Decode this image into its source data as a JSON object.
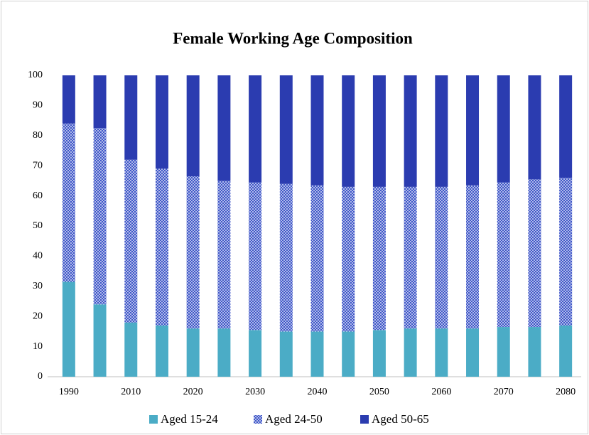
{
  "chart_data": {
    "type": "stacked_bar",
    "title": "Female Working Age Composition",
    "categories": [
      "1990",
      null,
      "2010",
      null,
      "2020",
      null,
      "2030",
      null,
      "2040",
      null,
      "2050",
      null,
      "2060",
      null,
      "2070",
      null,
      "2080"
    ],
    "series": [
      {
        "name": "Aged 15-24",
        "color": "#4bacc6",
        "values": [
          31.5,
          24,
          18,
          17,
          16,
          16,
          15.5,
          15,
          15,
          15,
          15.5,
          16,
          16,
          16,
          16.5,
          16.5,
          17
        ]
      },
      {
        "name": "Aged 24-50",
        "color": "#3d55c8",
        "fill": "crosshatch",
        "values": [
          52.5,
          58.5,
          54,
          52,
          50.5,
          49,
          49,
          49,
          48.5,
          48,
          47.5,
          47,
          47,
          47.5,
          48,
          49,
          49
        ]
      },
      {
        "name": "Aged 50-65",
        "color": "#2b3cb0",
        "values": [
          16,
          17.5,
          28,
          31,
          33.5,
          35,
          35.5,
          36,
          36.5,
          37,
          37,
          37,
          37,
          36.5,
          35.5,
          34.5,
          34
        ]
      }
    ],
    "ylim": [
      0,
      100
    ],
    "yticks": [
      0,
      10,
      20,
      30,
      40,
      50,
      60,
      70,
      80,
      90,
      100
    ],
    "grid": false,
    "legend": "bottom"
  }
}
